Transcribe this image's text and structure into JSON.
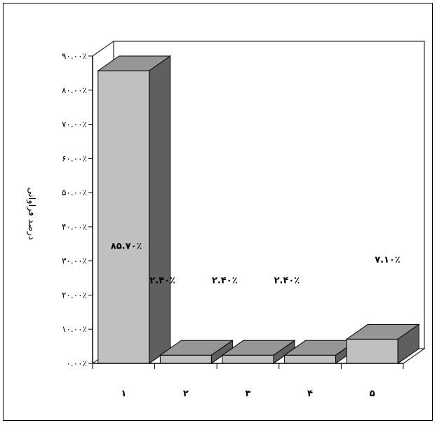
{
  "chart_data": {
    "type": "bar",
    "three_d": true,
    "categories": [
      "۱",
      "۲",
      "۳",
      "۴",
      "۵"
    ],
    "values": [
      85.7,
      2.4,
      2.4,
      2.4,
      7.1
    ],
    "data_labels": [
      "۸۵.۷۰٪",
      "۲.۴۰٪",
      "۲.۴۰٪",
      "۲.۴۰٪",
      "۷.۱۰٪"
    ],
    "ylabel": "درصد فراوانی",
    "xlabel": "",
    "ylim": [
      0,
      90
    ],
    "y_ticks": [
      0,
      10,
      20,
      30,
      40,
      50,
      60,
      70,
      80,
      90
    ],
    "y_tick_labels": [
      "۰.۰۰٪",
      "۱۰.۰۰٪",
      "۲۰.۰۰٪",
      "۳۰.۰۰٪",
      "۴۰.۰۰٪",
      "۵۰.۰۰٪",
      "۶۰.۰۰٪",
      "۷۰.۰۰٪",
      "۸۰.۰۰٪",
      "۹۰.۰۰٪"
    ],
    "grid": false,
    "legend": "none"
  },
  "colors": {
    "bar_front": "#c0c0c0",
    "bar_top": "#969696",
    "bar_side": "#5f5f5f",
    "axis": "#000000",
    "background": "#ffffff"
  }
}
